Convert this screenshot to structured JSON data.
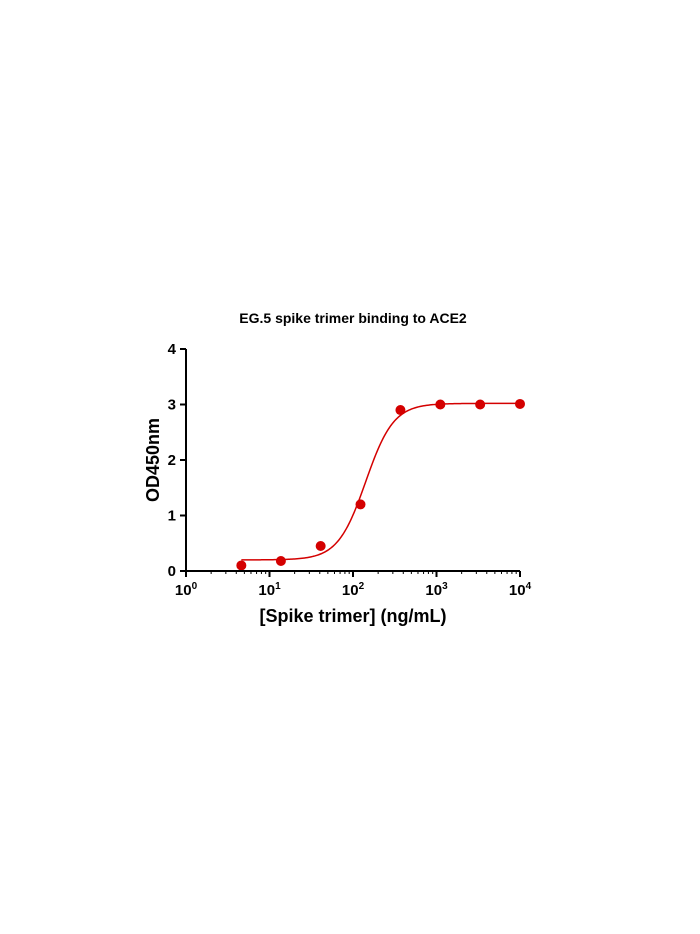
{
  "colors": {
    "series": "#d40000",
    "axis": "#000000",
    "background": "#ffffff"
  },
  "chart_data": {
    "type": "scatter",
    "title": "EG.5 spike trimer binding to ACE2",
    "xlabel": "[Spike trimer] (ng/mL)",
    "ylabel": "OD450nm",
    "xscale": "log",
    "xlim": [
      1,
      10000
    ],
    "ylim": [
      0,
      4
    ],
    "xticks": [
      {
        "value": 1,
        "base": "10",
        "exp": "0"
      },
      {
        "value": 10,
        "base": "10",
        "exp": "1"
      },
      {
        "value": 100,
        "base": "10",
        "exp": "2"
      },
      {
        "value": 1000,
        "base": "10",
        "exp": "3"
      },
      {
        "value": 10000,
        "base": "10",
        "exp": "4"
      }
    ],
    "yticks": [
      {
        "value": 0,
        "label": "0"
      },
      {
        "value": 1,
        "label": "1"
      },
      {
        "value": 2,
        "label": "2"
      },
      {
        "value": 3,
        "label": "3"
      },
      {
        "value": 4,
        "label": "4"
      }
    ],
    "grid": false,
    "legend": "none",
    "series": [
      {
        "points": [
          {
            "x": 4.6,
            "y": 0.1
          },
          {
            "x": 13.7,
            "y": 0.18
          },
          {
            "x": 41,
            "y": 0.45
          },
          {
            "x": 123,
            "y": 1.2
          },
          {
            "x": 370,
            "y": 2.9
          },
          {
            "x": 1111,
            "y": 3.0
          },
          {
            "x": 3333,
            "y": 3.0
          },
          {
            "x": 10000,
            "y": 3.01
          }
        ],
        "fit": {
          "model": "4PL",
          "bottom": 0.2,
          "top": 3.02,
          "ec50": 142,
          "hill": 2.6
        }
      }
    ]
  }
}
